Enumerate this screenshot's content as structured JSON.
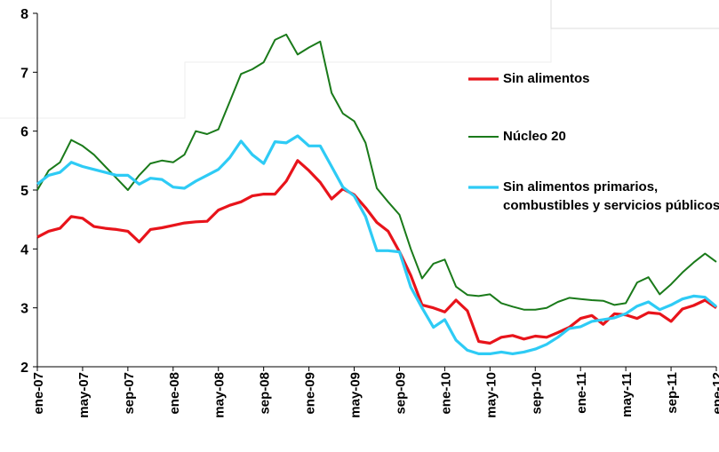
{
  "chart_data": {
    "type": "line",
    "categories": [
      "ene-07",
      null,
      null,
      null,
      "may-07",
      null,
      null,
      null,
      "sep-07",
      null,
      null,
      null,
      "ene-08",
      null,
      null,
      null,
      "may-08",
      null,
      null,
      null,
      "sep-08",
      null,
      null,
      null,
      "ene-09",
      null,
      null,
      null,
      "may-09",
      null,
      null,
      null,
      "sep-09",
      null,
      null,
      null,
      "ene-10",
      null,
      null,
      null,
      "may-10",
      null,
      null,
      null,
      "sep-10",
      null,
      null,
      null,
      "ene-11",
      null,
      null,
      null,
      "may-11",
      null,
      null,
      null,
      "sep-11",
      null,
      null,
      null,
      "ene-12"
    ],
    "series": [
      {
        "name": "Sin alimentos",
        "color": "#e8141b",
        "values": [
          4.2,
          4.3,
          4.35,
          4.55,
          4.52,
          4.38,
          4.35,
          4.33,
          4.3,
          4.12,
          4.33,
          4.36,
          4.4,
          4.44,
          4.46,
          4.47,
          4.66,
          4.74,
          4.8,
          4.9,
          4.93,
          4.93,
          5.15,
          5.5,
          5.33,
          5.13,
          4.85,
          5.02,
          4.92,
          4.7,
          4.45,
          4.3,
          3.95,
          3.55,
          3.05,
          3.0,
          2.93,
          3.13,
          2.95,
          2.43,
          2.4,
          2.5,
          2.53,
          2.47,
          2.52,
          2.5,
          2.58,
          2.67,
          2.82,
          2.87,
          2.72,
          2.9,
          2.88,
          2.82,
          2.92,
          2.9,
          2.77,
          2.98,
          3.04,
          3.13,
          3.0
        ]
      },
      {
        "name": "Núcleo 20",
        "color": "#1a7a1a",
        "values": [
          5.0,
          5.33,
          5.47,
          5.85,
          5.75,
          5.6,
          5.4,
          5.2,
          5.0,
          5.25,
          5.45,
          5.5,
          5.47,
          5.6,
          6.0,
          5.95,
          6.03,
          6.5,
          6.97,
          7.05,
          7.17,
          7.55,
          7.64,
          7.3,
          7.42,
          7.52,
          6.65,
          6.3,
          6.17,
          5.8,
          5.03,
          4.8,
          4.58,
          4.0,
          3.5,
          3.75,
          3.82,
          3.36,
          3.22,
          3.2,
          3.23,
          3.08,
          3.02,
          2.97,
          2.97,
          3.0,
          3.1,
          3.17,
          3.15,
          3.13,
          3.12,
          3.05,
          3.08,
          3.43,
          3.52,
          3.23,
          3.4,
          3.6,
          3.77,
          3.92,
          3.78
        ]
      },
      {
        "name": "Sin alimentos primarios, combustibles y servicios públicos",
        "color": "#2ecbf5",
        "values": [
          5.1,
          5.25,
          5.3,
          5.47,
          5.4,
          5.35,
          5.3,
          5.25,
          5.25,
          5.1,
          5.2,
          5.18,
          5.05,
          5.03,
          5.15,
          5.25,
          5.35,
          5.55,
          5.83,
          5.6,
          5.45,
          5.82,
          5.8,
          5.92,
          5.75,
          5.75,
          5.4,
          5.05,
          4.9,
          4.55,
          3.97,
          3.97,
          3.95,
          3.35,
          3.0,
          2.67,
          2.8,
          2.45,
          2.28,
          2.22,
          2.22,
          2.25,
          2.22,
          2.25,
          2.3,
          2.38,
          2.5,
          2.65,
          2.68,
          2.77,
          2.8,
          2.83,
          2.9,
          3.03,
          3.1,
          2.97,
          3.05,
          3.15,
          3.2,
          3.18,
          3.02
        ]
      }
    ],
    "ylim": [
      2,
      8
    ],
    "yticks": [
      2,
      3,
      4,
      5,
      6,
      7,
      8
    ]
  }
}
